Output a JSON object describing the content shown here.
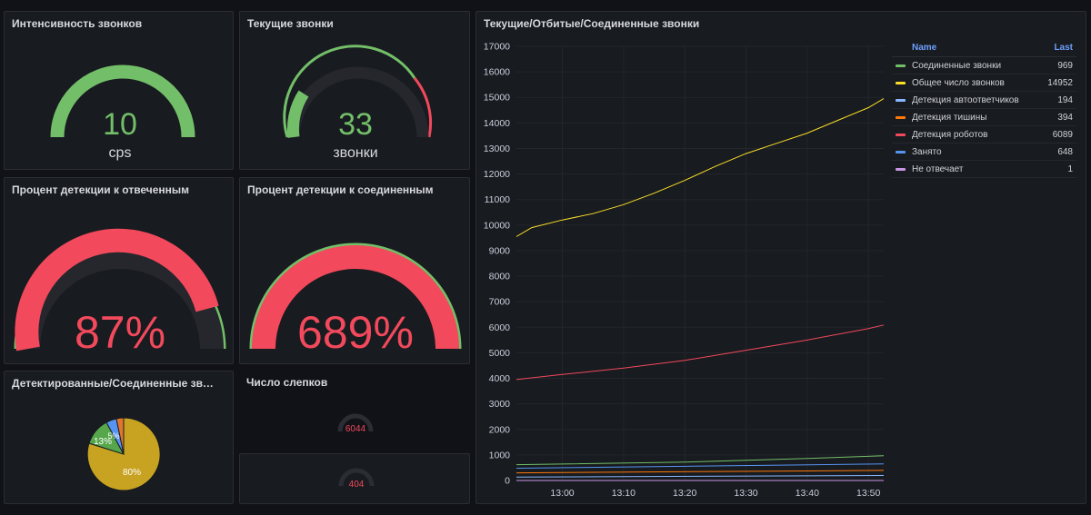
{
  "panels": {
    "intensity": {
      "title": "Интенсивность звонков",
      "value": "10",
      "unit": "cps",
      "fraction": 1.0,
      "color": "#73bf69"
    },
    "current": {
      "title": "Текущие звонки",
      "value": "33",
      "unit": "звонки",
      "fraction": 0.16,
      "color": "#73bf69",
      "threshold_color": "#f2495c"
    },
    "detect_answered": {
      "title": "Процент детекции к отвеченным",
      "value": "87%",
      "fraction": 0.87,
      "color": "#f2495c"
    },
    "detect_connected": {
      "title": "Процент детекции к соединенным",
      "value": "689%",
      "fraction": 1.0,
      "color": "#f2495c"
    },
    "pie": {
      "title": "Детектированные/Соединенные зво...",
      "labels": [
        "80%",
        "13%",
        "5%"
      ]
    },
    "snapshots": {
      "title": "Число слепков",
      "value1": "6044",
      "value2": "404"
    },
    "timeseries": {
      "title": "Текущие/Отбитые/Соединенные звонки"
    }
  },
  "legend": {
    "name_header": "Name",
    "last_header": "Last",
    "items": [
      {
        "name": "Соединенные звонки",
        "last": "969",
        "color": "#73bf69"
      },
      {
        "name": "Общее число звонков",
        "last": "14952",
        "color": "#fade2a"
      },
      {
        "name": "Детекция автоответчиков",
        "last": "194",
        "color": "#8ab8ff"
      },
      {
        "name": "Детекция тишины",
        "last": "394",
        "color": "#ff780a"
      },
      {
        "name": "Детекция роботов",
        "last": "6089",
        "color": "#f2495c"
      },
      {
        "name": "Занято",
        "last": "648",
        "color": "#5794f2"
      },
      {
        "name": "Не отвечает",
        "last": "1",
        "color": "#ca95e5"
      }
    ]
  },
  "chart_data": {
    "type": "line",
    "ylim": [
      0,
      17000
    ],
    "y_ticks": [
      "0",
      "1000",
      "2000",
      "3000",
      "4000",
      "5000",
      "6000",
      "7000",
      "8000",
      "9000",
      "10000",
      "11000",
      "12000",
      "13000",
      "14000",
      "15000",
      "16000",
      "17000"
    ],
    "x_ticks": [
      "13:00",
      "13:10",
      "13:20",
      "13:30",
      "13:40",
      "13:50"
    ],
    "x_range_minutes": [
      -7.5,
      52.5
    ],
    "series": [
      {
        "name": "Общее число звонков",
        "color": "#fade2a",
        "points": [
          [
            -7.5,
            9550
          ],
          [
            -5,
            9900
          ],
          [
            0,
            10200
          ],
          [
            5,
            10450
          ],
          [
            10,
            10800
          ],
          [
            15,
            11250
          ],
          [
            20,
            11750
          ],
          [
            25,
            12300
          ],
          [
            30,
            12800
          ],
          [
            35,
            13200
          ],
          [
            40,
            13600
          ],
          [
            45,
            14100
          ],
          [
            50,
            14600
          ],
          [
            52.5,
            14952
          ]
        ]
      },
      {
        "name": "Детекция роботов",
        "color": "#f2495c",
        "points": [
          [
            -7.5,
            3950
          ],
          [
            0,
            4150
          ],
          [
            10,
            4400
          ],
          [
            20,
            4700
          ],
          [
            30,
            5100
          ],
          [
            40,
            5500
          ],
          [
            50,
            5950
          ],
          [
            52.5,
            6089
          ]
        ]
      },
      {
        "name": "Соединенные звонки",
        "color": "#73bf69",
        "points": [
          [
            -7.5,
            620
          ],
          [
            20,
            720
          ],
          [
            40,
            860
          ],
          [
            52.5,
            969
          ]
        ]
      },
      {
        "name": "Занято",
        "color": "#5794f2",
        "points": [
          [
            -7.5,
            480
          ],
          [
            52.5,
            648
          ]
        ]
      },
      {
        "name": "Детекция тишины",
        "color": "#ff780a",
        "points": [
          [
            -7.5,
            300
          ],
          [
            52.5,
            394
          ]
        ]
      },
      {
        "name": "Детекция автоответчиков",
        "color": "#8ab8ff",
        "points": [
          [
            -7.5,
            130
          ],
          [
            52.5,
            194
          ]
        ]
      },
      {
        "name": "Не отвечает",
        "color": "#ca95e5",
        "points": [
          [
            -7.5,
            1
          ],
          [
            52.5,
            1
          ]
        ]
      }
    ]
  }
}
